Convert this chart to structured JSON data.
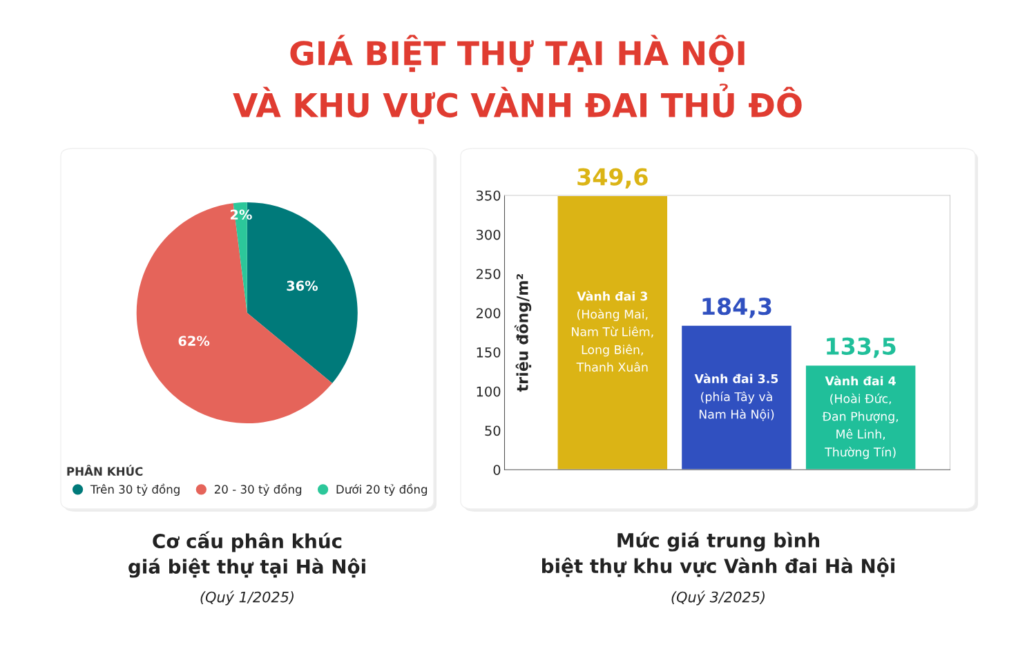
{
  "chart_data": [
    {
      "type": "pie",
      "title": "Cơ cấu phân khúc\ngiá biệt thự tại Hà Nội",
      "categories": [
        "Trên 30 tỷ đồng",
        "20 - 30 tỷ đồng",
        "Dưới 20 tỷ đồng"
      ],
      "values": [
        36,
        62,
        2
      ],
      "colors": [
        "#007a7a",
        "#e5645a",
        "#2cc79a"
      ],
      "value_labels": [
        "36%",
        "62%",
        "2%"
      ],
      "legend": "bottom",
      "legend_title": "PHÂN KHÚC",
      "annotations": [
        "GIÁ BIỆT THỰ TẠI HÀ NỘI\nVÀ KHU VỰC VÀNH ĐAI THỦ ĐÔ",
        "(Quý 1/2025)"
      ]
    },
    {
      "type": "bar",
      "title": "Mức giá trung bình\nbiệt thự khu vực Vành đai Hà Nội",
      "categories": [
        "Vành đai 3\n(Hoàng Mai,\nNam Từ Liêm,\nLong Biên,\nThanh Xuân",
        "Vành đai 3.5\n(phía Tây và\nNam Hà Nội)",
        "Vành đai 4\n(Hoài Đức,\nĐan Phượng,\nMê Linh,\nThường Tín)"
      ],
      "values": [
        349.6,
        184.3,
        133.5
      ],
      "colors": [
        "#dbb415",
        "#3050c0",
        "#20bf9a"
      ],
      "value_labels": [
        "349,6",
        "184,3",
        "133,5"
      ],
      "ylabel": "triệu đồng/m²",
      "ylim": [
        0,
        350
      ],
      "yticks": [
        0,
        50,
        100,
        150,
        200,
        250,
        300,
        350
      ],
      "tick_labels": "y",
      "grid": false,
      "annotations": [
        "(Quý 3/2025)"
      ]
    }
  ]
}
